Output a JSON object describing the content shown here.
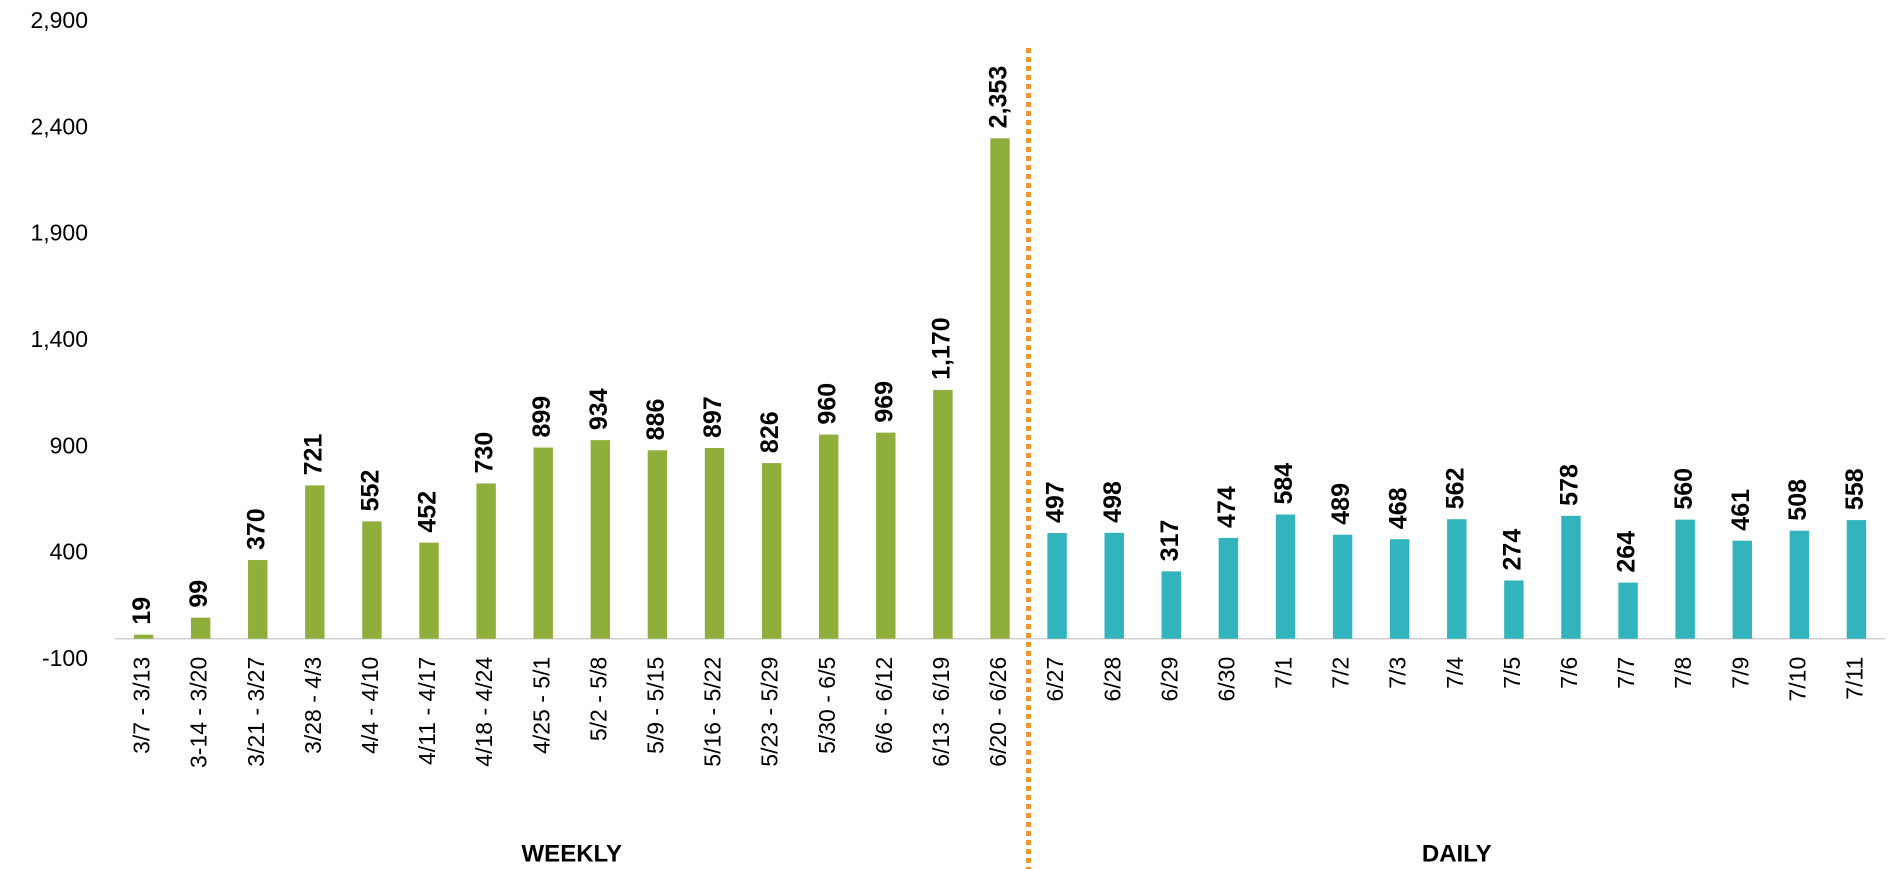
{
  "chart_data": {
    "type": "bar",
    "categories": [
      "3/7 - 3/13",
      "3-14 - 3/20",
      "3/21 - 3/27",
      "3/28 - 4/3",
      "4/4 - 4/10",
      "4/11 - 4/17",
      "4/18 - 4/24",
      "4/25 - 5/1",
      "5/2 - 5/8",
      "5/9 - 5/15",
      "5/16 - 5/22",
      "5/23 - 5/29",
      "5/30 - 6/5",
      "6/6 - 6/12",
      "6/13 - 6/19",
      "6/20 - 6/26",
      "6/27",
      "6/28",
      "6/29",
      "6/30",
      "7/1",
      "7/2",
      "7/3",
      "7/4",
      "7/5",
      "7/6",
      "7/7",
      "7/8",
      "7/9",
      "7/10",
      "7/11"
    ],
    "series": [
      {
        "name": "WEEKLY",
        "color": "#8fae3b",
        "values": [
          19,
          99,
          370,
          721,
          552,
          452,
          730,
          899,
          934,
          886,
          897,
          826,
          960,
          969,
          1170,
          2353,
          null,
          null,
          null,
          null,
          null,
          null,
          null,
          null,
          null,
          null,
          null,
          null,
          null,
          null,
          null
        ],
        "value_labels": [
          "19",
          "99",
          "370",
          "721",
          "552",
          "452",
          "730",
          "899",
          "934",
          "886",
          "897",
          "826",
          "960",
          "969",
          "1,170",
          "2,353",
          null,
          null,
          null,
          null,
          null,
          null,
          null,
          null,
          null,
          null,
          null,
          null,
          null,
          null,
          null
        ]
      },
      {
        "name": "DAILY",
        "color": "#32b4bd",
        "values": [
          null,
          null,
          null,
          null,
          null,
          null,
          null,
          null,
          null,
          null,
          null,
          null,
          null,
          null,
          null,
          null,
          497,
          498,
          317,
          474,
          584,
          489,
          468,
          562,
          274,
          578,
          264,
          560,
          461,
          508,
          558
        ],
        "value_labels": [
          null,
          null,
          null,
          null,
          null,
          null,
          null,
          null,
          null,
          null,
          null,
          null,
          null,
          null,
          null,
          null,
          "497",
          "498",
          "317",
          "474",
          "584",
          "489",
          "468",
          "562",
          "274",
          "578",
          "264",
          "560",
          "461",
          "508",
          "558"
        ]
      }
    ],
    "divider_color": "#f39530",
    "ylim": [
      -100,
      2900
    ],
    "yticks": [
      -100,
      400,
      900,
      {
        "value": 1400,
        "label": "1,400"
      },
      {
        "value": 1900,
        "label": "1,900"
      },
      {
        "value": 2400,
        "label": "2,400"
      },
      {
        "value": 2900,
        "label": "2,900"
      }
    ],
    "grid": false
  }
}
